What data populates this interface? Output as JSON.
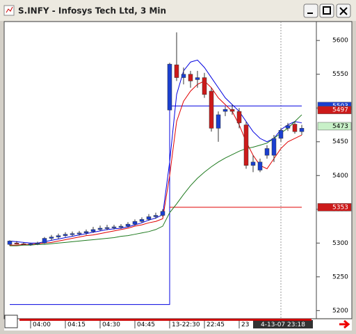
{
  "window_title": "S.INFY - Infosys Tech Ltd, 3 Min",
  "chart_data": {
    "type": "candlestick",
    "categories": [
      null,
      null,
      null,
      "04:00",
      null,
      null,
      null,
      null,
      "04:15",
      null,
      null,
      null,
      null,
      "04:30",
      null,
      null,
      null,
      null,
      "04:45",
      null,
      null,
      null,
      null,
      "13-22:30",
      null,
      null,
      null,
      null,
      "22:45",
      null,
      null,
      null,
      null,
      "23",
      null,
      null,
      null,
      null,
      null,
      "4-13-07 23:18",
      null,
      null,
      null
    ],
    "highlight_category": 39,
    "xlim": [
      -0.5,
      44.1
    ],
    "ylim": [
      5188,
      5628
    ],
    "yticks": [
      5200,
      5250,
      5300,
      5350,
      5400,
      5450,
      5500,
      5550,
      5600
    ],
    "up_color": "#1a3fd0",
    "down_color": "#cc1a1a",
    "open": [
      5298,
      5300,
      5299,
      5298,
      5299,
      5300,
      5307,
      5309,
      5311,
      5313,
      5314,
      5315,
      5317,
      5320,
      5322,
      5323,
      5324,
      5325,
      5328,
      5332,
      5335,
      5339,
      5341,
      5497,
      5564,
      5545,
      5550,
      5542,
      5545,
      5525,
      5470,
      5495,
      5498,
      5495,
      5475,
      5415,
      5408,
      5430,
      5430,
      5455,
      5470,
      5476,
      5465
    ],
    "high": [
      5304,
      5303,
      5301,
      5300,
      5302,
      5309,
      5312,
      5314,
      5316,
      5317,
      5318,
      5320,
      5324,
      5326,
      5327,
      5327,
      5328,
      5331,
      5335,
      5338,
      5343,
      5345,
      5350,
      5567,
      5612,
      5560,
      5555,
      5555,
      5552,
      5530,
      5495,
      5502,
      5505,
      5500,
      5480,
      5430,
      5425,
      5445,
      5460,
      5470,
      5478,
      5480,
      5475
    ],
    "low": [
      5296,
      5298,
      5297,
      5296,
      5297,
      5299,
      5304,
      5306,
      5309,
      5310,
      5311,
      5312,
      5315,
      5318,
      5319,
      5320,
      5321,
      5323,
      5326,
      5330,
      5333,
      5336,
      5339,
      5497,
      5540,
      5535,
      5530,
      5530,
      5515,
      5465,
      5450,
      5488,
      5490,
      5470,
      5410,
      5405,
      5405,
      5425,
      5420,
      5450,
      5466,
      5462,
      5460
    ],
    "close": [
      5303,
      5299,
      5298,
      5299,
      5300,
      5307,
      5309,
      5311,
      5313,
      5314,
      5315,
      5317,
      5320,
      5322,
      5323,
      5324,
      5325,
      5328,
      5332,
      5335,
      5339,
      5341,
      5347,
      5565,
      5545,
      5550,
      5540,
      5545,
      5520,
      5470,
      5490,
      5498,
      5495,
      5478,
      5415,
      5420,
      5420,
      5440,
      5455,
      5467,
      5474,
      5465,
      5470
    ],
    "series": [
      {
        "color": "#0000e0",
        "step": true,
        "values": [
          5209,
          5209,
          5209,
          5209,
          5209,
          5209,
          5209,
          5209,
          5209,
          5209,
          5209,
          5209,
          5209,
          5209,
          5209,
          5209,
          5209,
          5209,
          5209,
          5209,
          5209,
          5209,
          5209,
          5503,
          5503,
          5503,
          5503,
          5503,
          5503,
          5503,
          5503,
          5503,
          5503,
          5503,
          5503,
          5503,
          5503,
          5503,
          5503,
          5503,
          5503,
          5503,
          5503
        ]
      },
      {
        "color": "#e00000",
        "step": true,
        "values": [
          null,
          null,
          null,
          null,
          null,
          null,
          null,
          null,
          null,
          null,
          null,
          null,
          null,
          null,
          null,
          null,
          null,
          null,
          null,
          null,
          null,
          null,
          null,
          5353,
          5353,
          5353,
          5353,
          5353,
          5353,
          5353,
          5353,
          5353,
          5353,
          5353,
          5353,
          5353,
          5353,
          5353,
          5353,
          5353,
          5353,
          5353,
          5353
        ]
      },
      {
        "color": "#0000e0",
        "values": [
          5303,
          5302,
          5301,
          5300,
          5300,
          5302,
          5304,
          5306,
          5308,
          5310,
          5312,
          5314,
          5316,
          5318,
          5320,
          5321,
          5322,
          5324,
          5327,
          5330,
          5334,
          5337,
          5342,
          5420,
          5520,
          5555,
          5568,
          5571,
          5560,
          5545,
          5530,
          5515,
          5505,
          5495,
          5480,
          5465,
          5455,
          5450,
          5455,
          5468,
          5475,
          5480,
          5478
        ]
      },
      {
        "color": "#e00000",
        "values": [
          5297,
          5297,
          5298,
          5298,
          5299,
          5300,
          5301,
          5303,
          5305,
          5307,
          5309,
          5311,
          5312,
          5314,
          5316,
          5318,
          5320,
          5322,
          5325,
          5327,
          5330,
          5332,
          5336,
          5400,
          5480,
          5510,
          5525,
          5535,
          5540,
          5530,
          5515,
          5505,
          5495,
          5475,
          5450,
          5430,
          5415,
          5410,
          5425,
          5440,
          5450,
          5455,
          5460
        ]
      },
      {
        "color": "#1e7a1e",
        "values": [
          5296,
          5296,
          5297,
          5297,
          5298,
          5298,
          5299,
          5300,
          5301,
          5302,
          5303,
          5304,
          5305,
          5306,
          5307,
          5308,
          5310,
          5311,
          5313,
          5315,
          5317,
          5320,
          5325,
          5345,
          5358,
          5372,
          5385,
          5396,
          5405,
          5413,
          5420,
          5426,
          5431,
          5436,
          5440,
          5442,
          5445,
          5448,
          5455,
          5463,
          5470,
          5480,
          5490
        ]
      }
    ],
    "price_markers": [
      {
        "value": 5503,
        "color": "#1a3fd0"
      },
      {
        "value": 5497,
        "color": "#cc1a1a"
      },
      {
        "value": 5473,
        "color": "#c8f0c8"
      },
      {
        "value": 5353,
        "color": "#cc1a1a"
      }
    ]
  }
}
